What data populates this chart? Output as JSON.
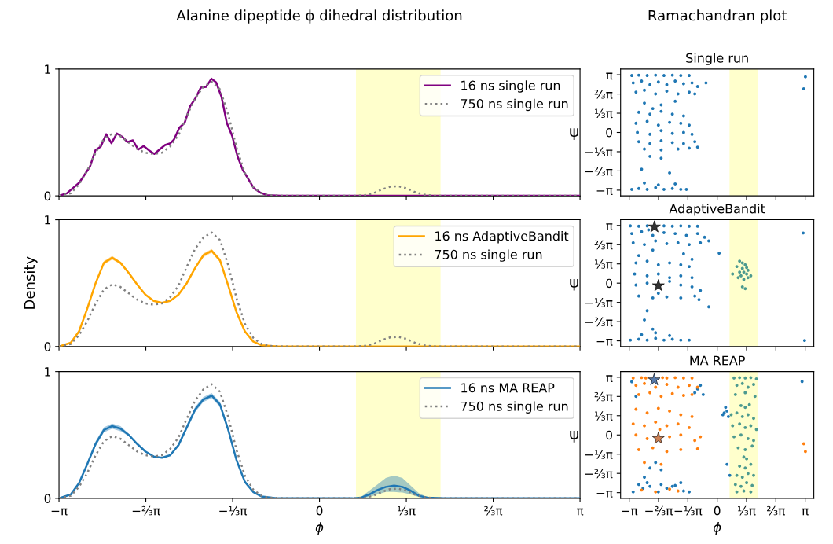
{
  "chart_data": [
    {
      "type": "line",
      "title": "Alanine dipeptide ϕ dihedral distribution",
      "xlim": [
        -3.1416,
        3.1416
      ],
      "ylim": [
        0,
        1
      ],
      "yticks": [
        0,
        1
      ],
      "tick_labels": "y",
      "legend": "top right",
      "xticks": [
        {
          "value": -3.1416,
          "label": null
        },
        {
          "value": -2.0944,
          "label": null
        },
        {
          "value": -1.0472,
          "label": null
        },
        {
          "value": 0,
          "label": null
        },
        {
          "value": 1.0472,
          "label": null
        },
        {
          "value": 2.0944,
          "label": null
        },
        {
          "value": 3.1416,
          "label": null
        }
      ],
      "bands": [
        {
          "axis": "x",
          "from": 0.44,
          "to": 1.46,
          "color": "#ffffcc"
        }
      ],
      "series": [
        {
          "name": "16 ns single run",
          "color": "#800080",
          "line_style": "solid",
          "x": [
            -3.1416,
            -3.047,
            -2.896,
            -2.767,
            -2.702,
            -2.638,
            -2.573,
            -2.509,
            -2.444,
            -2.379,
            -2.315,
            -2.25,
            -2.186,
            -2.121,
            -2.056,
            -1.992,
            -1.927,
            -1.863,
            -1.798,
            -1.755,
            -1.69,
            -1.626,
            -1.561,
            -1.497,
            -1.432,
            -1.368,
            -1.303,
            -1.247,
            -1.182,
            -1.118,
            -1.053,
            -0.988,
            -0.924,
            -0.859,
            -0.794,
            -0.721,
            -0.635,
            -0.463,
            3.1416
          ],
          "values": [
            0,
            0.02,
            0.105,
            0.232,
            0.36,
            0.388,
            0.486,
            0.415,
            0.492,
            0.466,
            0.424,
            0.438,
            0.365,
            0.393,
            0.359,
            0.331,
            0.367,
            0.401,
            0.415,
            0.444,
            0.537,
            0.576,
            0.706,
            0.768,
            0.853,
            0.859,
            0.924,
            0.895,
            0.782,
            0.576,
            0.472,
            0.311,
            0.203,
            0.133,
            0.062,
            0.028,
            0.006,
            0,
            0
          ]
        },
        {
          "name": "750 ns single run",
          "color": "#808080",
          "line_style": "dotted",
          "x": [
            -3.1416,
            -3.0,
            -2.9,
            -2.8,
            -2.7,
            -2.6,
            -2.5,
            -2.4,
            -2.3,
            -2.2,
            -2.1,
            -2.0,
            -1.9,
            -1.8,
            -1.7,
            -1.6,
            -1.5,
            -1.4,
            -1.3,
            -1.2,
            -1.1,
            -1.0,
            -0.9,
            -0.8,
            -0.7,
            -0.6,
            -0.4,
            0.4,
            0.55,
            0.65,
            0.75,
            0.85,
            0.95,
            1.05,
            1.15,
            1.25,
            1.4,
            2.0,
            3.1416
          ],
          "values": [
            0,
            0.02,
            0.09,
            0.2,
            0.34,
            0.45,
            0.49,
            0.47,
            0.42,
            0.37,
            0.34,
            0.33,
            0.34,
            0.39,
            0.48,
            0.63,
            0.77,
            0.86,
            0.9,
            0.84,
            0.64,
            0.38,
            0.18,
            0.07,
            0.02,
            0.005,
            0,
            0,
            0.005,
            0.02,
            0.05,
            0.072,
            0.076,
            0.06,
            0.03,
            0.01,
            0,
            0,
            0
          ]
        }
      ]
    },
    {
      "type": "scatter",
      "title": "Ramachandran plot",
      "subtitle": "Single run",
      "ylabel": "ψ",
      "xlim": [
        -3.45,
        3.45
      ],
      "ylim": [
        -3.45,
        3.45
      ],
      "tick_labels": "y",
      "xticks": [
        {
          "value": -3.1416,
          "label": null
        },
        {
          "value": -2.0944,
          "label": null
        },
        {
          "value": -1.0472,
          "label": null
        },
        {
          "value": 0,
          "label": null
        },
        {
          "value": 1.0472,
          "label": null
        },
        {
          "value": 2.0944,
          "label": null
        },
        {
          "value": 3.1416,
          "label": null
        }
      ],
      "yticks": [
        {
          "value": -3.1416,
          "label": "−π"
        },
        {
          "value": -2.0944,
          "label": "−⅔π"
        },
        {
          "value": -1.0472,
          "label": "−⅓π"
        },
        {
          "value": 0,
          "label": "0"
        },
        {
          "value": 1.0472,
          "label": "⅓π"
        },
        {
          "value": 2.0944,
          "label": "⅔π"
        },
        {
          "value": 3.1416,
          "label": "π"
        }
      ],
      "bands": [
        {
          "axis": "x",
          "from": 0.44,
          "to": 1.46,
          "color": "#ffffcc"
        }
      ],
      "series": [
        {
          "color": "#1f77b4",
          "marker": "circle",
          "x": [
            -3.05,
            -2.8,
            -2.5,
            -2.2,
            -1.9,
            -1.6,
            -1.3,
            -1.0,
            -3.0,
            -2.7,
            -2.4,
            -2.1,
            -1.8,
            -1.5,
            -1.2,
            -0.9,
            -0.7,
            -2.9,
            -2.6,
            -2.2,
            -1.8,
            -1.4,
            -1.0,
            -0.8,
            -0.4,
            -2.6,
            -2.0,
            -1.5,
            -2.3,
            -2.8,
            -2.4,
            -2.0,
            -1.6,
            -1.2,
            -2.9,
            -2.5,
            -2.1,
            -1.7,
            -1.3,
            -1.0,
            -2.85,
            -2.4,
            -2.0,
            -1.6,
            -1.2,
            -0.9,
            -2.8,
            -2.4,
            -2.0,
            -1.6,
            -1.2,
            -0.8,
            -0.7,
            -2.6,
            -2.0,
            -1.4,
            -1.0,
            -2.0,
            -2.4,
            -2.7,
            -1.7,
            -3.05,
            -2.8,
            -2.5,
            -2.2,
            -1.9,
            -1.6,
            -1.3,
            -1.1,
            -2.6,
            -2.1,
            -1.5,
            3.15,
            3.09
          ],
          "values": [
            3.1,
            3.12,
            3.1,
            3.12,
            3.1,
            3.12,
            3.1,
            3.1,
            2.7,
            2.8,
            2.6,
            2.75,
            2.6,
            2.8,
            2.65,
            2.7,
            2.5,
            2.2,
            2.3,
            2.1,
            2.25,
            2.1,
            2.2,
            2.1,
            2.7,
            1.6,
            1.5,
            1.7,
            1.3,
            1.1,
            1.0,
            1.15,
            1.0,
            0.9,
            0.5,
            0.6,
            0.4,
            0.55,
            0.5,
            0.4,
            0.0,
            -0.1,
            0.1,
            -0.05,
            0.0,
            -0.1,
            -0.5,
            -0.6,
            -0.45,
            -0.55,
            -0.6,
            -0.5,
            -0.8,
            -0.9,
            -0.95,
            -0.9,
            -0.85,
            -1.4,
            -1.3,
            -2.0,
            -2.2,
            -3.1,
            -3.05,
            -3.1,
            -3.0,
            -3.1,
            -3.05,
            -3.1,
            -3.1,
            -2.75,
            -2.85,
            -2.8,
            3.03,
            2.38
          ]
        }
      ]
    },
    {
      "type": "line",
      "ylabel": "Density",
      "xlim": [
        -3.1416,
        3.1416
      ],
      "ylim": [
        0,
        1
      ],
      "yticks": [
        0,
        1
      ],
      "tick_labels": "y",
      "legend": "top right",
      "xticks": [
        {
          "value": -3.1416,
          "label": null
        },
        {
          "value": -2.0944,
          "label": null
        },
        {
          "value": -1.0472,
          "label": null
        },
        {
          "value": 0,
          "label": null
        },
        {
          "value": 1.0472,
          "label": null
        },
        {
          "value": 2.0944,
          "label": null
        },
        {
          "value": 3.1416,
          "label": null
        }
      ],
      "bands": [
        {
          "axis": "x",
          "from": 0.44,
          "to": 1.46,
          "color": "#ffffcc"
        }
      ],
      "series": [
        {
          "name": "16 ns AdaptiveBandit",
          "color": "#ffa500",
          "line_style": "solid",
          "x": [
            -3.1416,
            -3.0,
            -2.9,
            -2.8,
            -2.7,
            -2.6,
            -2.5,
            -2.4,
            -2.3,
            -2.2,
            -2.1,
            -2.0,
            -1.9,
            -1.8,
            -1.7,
            -1.6,
            -1.5,
            -1.4,
            -1.3,
            -1.2,
            -1.1,
            -1.0,
            -0.9,
            -0.8,
            -0.7,
            -0.5,
            3.1416
          ],
          "values": [
            0,
            0.03,
            0.12,
            0.3,
            0.5,
            0.66,
            0.7,
            0.66,
            0.58,
            0.49,
            0.41,
            0.36,
            0.345,
            0.36,
            0.41,
            0.5,
            0.62,
            0.72,
            0.755,
            0.68,
            0.48,
            0.27,
            0.12,
            0.04,
            0.01,
            0,
            0
          ],
          "lower": [
            0,
            0.03,
            0.11,
            0.29,
            0.49,
            0.645,
            0.685,
            0.65,
            0.57,
            0.485,
            0.405,
            0.355,
            0.34,
            0.355,
            0.405,
            0.49,
            0.61,
            0.705,
            0.74,
            0.665,
            0.47,
            0.265,
            0.115,
            0.04,
            0.01,
            0,
            0
          ],
          "upper": [
            0,
            0.03,
            0.13,
            0.31,
            0.51,
            0.675,
            0.715,
            0.67,
            0.59,
            0.495,
            0.415,
            0.365,
            0.35,
            0.365,
            0.415,
            0.51,
            0.63,
            0.735,
            0.77,
            0.695,
            0.49,
            0.275,
            0.125,
            0.04,
            0.01,
            0,
            0
          ]
        },
        {
          "name": "750 ns single run",
          "color": "#808080",
          "line_style": "dotted",
          "x": [
            -3.1416,
            -3.0,
            -2.9,
            -2.8,
            -2.7,
            -2.6,
            -2.5,
            -2.4,
            -2.3,
            -2.2,
            -2.1,
            -2.0,
            -1.9,
            -1.8,
            -1.7,
            -1.6,
            -1.5,
            -1.4,
            -1.3,
            -1.2,
            -1.1,
            -1.0,
            -0.9,
            -0.8,
            -0.7,
            -0.6,
            -0.4,
            0.4,
            0.55,
            0.65,
            0.75,
            0.85,
            0.95,
            1.05,
            1.15,
            1.25,
            1.4,
            2.0,
            3.1416
          ],
          "values": [
            0,
            0.02,
            0.09,
            0.2,
            0.34,
            0.45,
            0.49,
            0.47,
            0.42,
            0.37,
            0.34,
            0.33,
            0.34,
            0.39,
            0.48,
            0.63,
            0.77,
            0.86,
            0.9,
            0.84,
            0.64,
            0.38,
            0.18,
            0.07,
            0.02,
            0.005,
            0,
            0,
            0.005,
            0.02,
            0.05,
            0.072,
            0.076,
            0.06,
            0.03,
            0.01,
            0,
            0,
            0
          ]
        }
      ]
    },
    {
      "type": "scatter",
      "subtitle": "AdaptiveBandit",
      "ylabel": "ψ",
      "xlim": [
        -3.45,
        3.45
      ],
      "ylim": [
        -3.45,
        3.45
      ],
      "tick_labels": "y",
      "xticks": [
        {
          "value": -3.1416,
          "label": null
        },
        {
          "value": -2.0944,
          "label": null
        },
        {
          "value": -1.0472,
          "label": null
        },
        {
          "value": 0,
          "label": null
        },
        {
          "value": 1.0472,
          "label": null
        },
        {
          "value": 2.0944,
          "label": null
        },
        {
          "value": 3.1416,
          "label": null
        }
      ],
      "yticks": [
        {
          "value": -3.1416,
          "label": "−π"
        },
        {
          "value": -2.0944,
          "label": "−⅔π"
        },
        {
          "value": -1.0472,
          "label": "−⅓π"
        },
        {
          "value": 0,
          "label": "0"
        },
        {
          "value": 1.0472,
          "label": "⅓π"
        },
        {
          "value": 2.0944,
          "label": "⅔π"
        },
        {
          "value": 3.1416,
          "label": "π"
        }
      ],
      "bands": [
        {
          "axis": "x",
          "from": 0.44,
          "to": 1.46,
          "color": "#ffffcc"
        }
      ],
      "series": [
        {
          "color": "#1f77b4",
          "marker": "circle",
          "x": [
            -3.1,
            -2.8,
            -2.5,
            -2.45,
            -1.9,
            -1.6,
            -1.3,
            -1.0,
            -0.7,
            -3.05,
            -2.7,
            -2.3,
            -1.9,
            -1.5,
            -1.1,
            -0.7,
            -0.45,
            -3.0,
            -2.6,
            -2.2,
            -1.8,
            -1.4,
            -1.0,
            -0.6,
            -0.3,
            -2.8,
            -2.3,
            -1.2,
            -0.9,
            -2.9,
            -2.5,
            -2.1,
            -1.7,
            -1.3,
            -1.0,
            -2.95,
            -2.5,
            -2.1,
            -1.7,
            -1.3,
            -0.9,
            -2.9,
            -2.5,
            -2.1,
            -1.7,
            -1.3,
            -0.9,
            -0.6,
            -2.8,
            -2.3,
            -1.8,
            -1.3,
            -0.8,
            -0.65,
            -2.5,
            -2.6,
            -2.3,
            -3.1,
            -2.8,
            -2.5,
            -2.2,
            -1.9,
            -1.6,
            -1.3,
            -1.0,
            -2.7,
            -2.2,
            -1.7,
            0.07,
            -0.3,
            3.07,
            3.12
          ],
          "values": [
            3.12,
            3.1,
            3.12,
            2.9,
            3.12,
            3.1,
            3.12,
            3.1,
            3.1,
            2.7,
            2.8,
            2.6,
            2.75,
            2.7,
            2.6,
            2.7,
            2.5,
            2.2,
            2.1,
            2.3,
            2.15,
            2.2,
            2.1,
            2.2,
            2.3,
            1.5,
            1.8,
            1.6,
            1.3,
            1.1,
            1.2,
            1.0,
            1.1,
            1.0,
            0.9,
            0.5,
            0.4,
            0.5,
            0.3,
            0.4,
            0.3,
            -0.1,
            0.0,
            -0.55,
            0.1,
            -0.1,
            -0.2,
            -0.4,
            -0.7,
            -0.8,
            -0.75,
            -0.8,
            -0.7,
            -0.9,
            -1.5,
            -2.0,
            -2.5,
            -3.1,
            -3.05,
            -3.1,
            -3.0,
            -3.1,
            -3.05,
            -3.1,
            -3.1,
            -2.8,
            -2.7,
            -2.85,
            1.63,
            -1.29,
            2.73,
            -3.12
          ]
        },
        {
          "color": "#4c9a8f",
          "marker": "circle",
          "x": [
            0.55,
            0.7,
            0.8,
            0.9,
            0.95,
            1.0,
            0.85,
            1.05,
            1.1,
            0.95,
            0.8,
            1.2,
            0.9,
            1.0,
            1.1,
            0.75,
            0.9,
            1.05
          ],
          "values": [
            0.5,
            0.9,
            1.2,
            0.8,
            0.6,
            1.0,
            0.4,
            0.5,
            0.3,
            0.2,
            0.6,
            0.4,
            -0.2,
            -0.3,
            0.7,
            0.3,
            1.1,
            0.85
          ]
        },
        {
          "color": "#000000",
          "marker": "star",
          "x": [
            -2.24,
            -2.1
          ],
          "values": [
            3.06,
            -0.14
          ]
        }
      ]
    },
    {
      "type": "line",
      "xlabel": "ϕ",
      "xlim": [
        -3.1416,
        3.1416
      ],
      "ylim": [
        0,
        1
      ],
      "yticks": [
        0,
        1
      ],
      "legend": "top right",
      "xticks": [
        {
          "value": -3.1416,
          "label": "−π"
        },
        {
          "value": -2.0944,
          "label": "−⅔π"
        },
        {
          "value": -1.0472,
          "label": "−⅓π"
        },
        {
          "value": 0,
          "label": "0"
        },
        {
          "value": 1.0472,
          "label": "⅓π"
        },
        {
          "value": 2.0944,
          "label": "⅔π"
        },
        {
          "value": 3.1416,
          "label": "π"
        }
      ],
      "bands": [
        {
          "axis": "x",
          "from": 0.44,
          "to": 1.46,
          "color": "#ffffcc"
        }
      ],
      "series": [
        {
          "name": "16 ns MA REAP",
          "color": "#1f77b4",
          "line_style": "solid",
          "x": [
            -3.1416,
            -3.0,
            -2.9,
            -2.8,
            -2.7,
            -2.6,
            -2.5,
            -2.4,
            -2.3,
            -2.2,
            -2.1,
            -2.0,
            -1.9,
            -1.8,
            -1.7,
            -1.6,
            -1.5,
            -1.4,
            -1.3,
            -1.2,
            -1.1,
            -1.0,
            -0.9,
            -0.8,
            -0.7,
            -0.5,
            0.4,
            0.5,
            0.6,
            0.7,
            0.8,
            0.9,
            1.0,
            1.1,
            1.2,
            1.3,
            1.5,
            3.1416
          ],
          "values": [
            0,
            0.03,
            0.12,
            0.27,
            0.43,
            0.54,
            0.57,
            0.55,
            0.5,
            0.43,
            0.37,
            0.33,
            0.32,
            0.34,
            0.42,
            0.56,
            0.7,
            0.78,
            0.81,
            0.74,
            0.54,
            0.3,
            0.13,
            0.05,
            0.015,
            0,
            0,
            0.005,
            0.03,
            0.065,
            0.09,
            0.1,
            0.09,
            0.06,
            0.02,
            0.005,
            0,
            0
          ],
          "lower": [
            0,
            0.03,
            0.11,
            0.26,
            0.41,
            0.52,
            0.55,
            0.53,
            0.49,
            0.42,
            0.365,
            0.325,
            0.315,
            0.335,
            0.41,
            0.54,
            0.68,
            0.76,
            0.79,
            0.72,
            0.52,
            0.29,
            0.12,
            0.045,
            0.01,
            0,
            0,
            0,
            0.01,
            0.03,
            0.05,
            0.05,
            0.045,
            0.03,
            0.01,
            0,
            0,
            0
          ],
          "upper": [
            0,
            0.03,
            0.13,
            0.28,
            0.45,
            0.56,
            0.59,
            0.57,
            0.51,
            0.44,
            0.375,
            0.335,
            0.325,
            0.345,
            0.43,
            0.58,
            0.72,
            0.8,
            0.83,
            0.76,
            0.56,
            0.31,
            0.14,
            0.055,
            0.02,
            0,
            0,
            0.01,
            0.06,
            0.11,
            0.16,
            0.18,
            0.16,
            0.1,
            0.04,
            0.01,
            0,
            0
          ]
        },
        {
          "name": "750 ns single run",
          "color": "#808080",
          "line_style": "dotted",
          "x": [
            -3.1416,
            -3.0,
            -2.9,
            -2.8,
            -2.7,
            -2.6,
            -2.5,
            -2.4,
            -2.3,
            -2.2,
            -2.1,
            -2.0,
            -1.9,
            -1.8,
            -1.7,
            -1.6,
            -1.5,
            -1.4,
            -1.3,
            -1.2,
            -1.1,
            -1.0,
            -0.9,
            -0.8,
            -0.7,
            -0.6,
            -0.4,
            0.4,
            0.55,
            0.65,
            0.75,
            0.85,
            0.95,
            1.05,
            1.15,
            1.25,
            1.4,
            2.0,
            3.1416
          ],
          "values": [
            0,
            0.02,
            0.09,
            0.2,
            0.34,
            0.45,
            0.49,
            0.47,
            0.42,
            0.37,
            0.34,
            0.33,
            0.34,
            0.39,
            0.48,
            0.63,
            0.77,
            0.86,
            0.9,
            0.84,
            0.64,
            0.38,
            0.18,
            0.07,
            0.02,
            0.005,
            0,
            0,
            0.005,
            0.02,
            0.05,
            0.072,
            0.076,
            0.06,
            0.03,
            0.01,
            0,
            0,
            0
          ]
        }
      ]
    },
    {
      "type": "scatter",
      "subtitle": "MA REAP",
      "xlabel": "ϕ",
      "ylabel": "ψ",
      "xlim": [
        -3.45,
        3.45
      ],
      "ylim": [
        -3.45,
        3.45
      ],
      "xticks": [
        {
          "value": -3.1416,
          "label": "−π"
        },
        {
          "value": -2.0944,
          "label": "−⅔π"
        },
        {
          "value": -1.0472,
          "label": "−⅓π"
        },
        {
          "value": 0,
          "label": "0"
        },
        {
          "value": 1.0472,
          "label": "⅓π"
        },
        {
          "value": 2.0944,
          "label": "⅔π"
        },
        {
          "value": 3.1416,
          "label": "π"
        }
      ],
      "yticks": [
        {
          "value": -3.1416,
          "label": "−π"
        },
        {
          "value": -2.0944,
          "label": "−⅔π"
        },
        {
          "value": -1.0472,
          "label": "−⅓π"
        },
        {
          "value": 0,
          "label": "0"
        },
        {
          "value": 1.0472,
          "label": "⅓π"
        },
        {
          "value": 2.0944,
          "label": "⅔π"
        },
        {
          "value": 3.1416,
          "label": "π"
        }
      ],
      "bands": [
        {
          "axis": "x",
          "from": 0.44,
          "to": 1.46,
          "color": "#ffffcc"
        }
      ],
      "series": [
        {
          "color": "#1f77b4",
          "marker": "circle",
          "x": [
            -3.05,
            -2.9,
            -0.8,
            -0.6,
            -0.5,
            -0.7,
            -3.0,
            -2.65,
            -2.4,
            -2.1,
            -1.8,
            -1.5,
            -1.2,
            -1.0,
            -2.8,
            -2.5,
            -2.0,
            -1.6,
            -2.4,
            -2.0,
            -2.2,
            0.3,
            0.25,
            0.4,
            0.35,
            0.2,
            0.35,
            0.45,
            3.03,
            -1.3,
            -2.6
          ],
          "values": [
            2.9,
            2.1,
            2.3,
            2.7,
            2.2,
            2.5,
            -3.1,
            -2.9,
            -2.8,
            -3.1,
            -2.9,
            -2.75,
            -3.05,
            -3.1,
            -2.7,
            -2.6,
            -2.7,
            -2.8,
            -1.8,
            -1.9,
            -1.5,
            1.5,
            1.2,
            1.0,
            1.3,
            1.1,
            -1.6,
            -2.2,
            2.91,
            -2.6,
            -2.3
          ]
        },
        {
          "color": "#ff7f0e",
          "marker": "circle",
          "x": [
            -3.0,
            -2.7,
            -2.55,
            -1.95,
            -1.8,
            -1.5,
            -1.2,
            -0.9,
            -2.9,
            -2.6,
            -2.2,
            -1.8,
            -1.4,
            -1.0,
            -0.7,
            -2.8,
            -2.4,
            -2.0,
            -1.6,
            -1.2,
            -0.9,
            -2.9,
            -2.5,
            -2.1,
            -1.7,
            -1.3,
            -0.9,
            -3.0,
            -2.6,
            -2.2,
            -1.8,
            -1.4,
            -1.0,
            -0.6,
            -2.9,
            -2.5,
            -2.05,
            -1.7,
            -1.3,
            -0.8,
            -2.8,
            -2.3,
            -1.8,
            -1.3,
            -0.7,
            -2.6,
            -2.0,
            -2.7,
            -2.2,
            -1.7,
            -1.4,
            3.09,
            3.15
          ],
          "values": [
            3.1,
            3.12,
            3.1,
            3.12,
            3.1,
            3.12,
            3.1,
            3.1,
            2.7,
            2.8,
            2.6,
            2.75,
            2.6,
            2.7,
            2.6,
            2.2,
            2.3,
            2.1,
            2.25,
            2.15,
            2.2,
            1.4,
            1.2,
            1.45,
            1.3,
            1.1,
            1.0,
            0.6,
            0.5,
            0.7,
            0.5,
            0.6,
            0.4,
            -0.1,
            0.0,
            -0.2,
            0.3,
            -0.1,
            0.0,
            -0.3,
            -0.8,
            -0.7,
            -0.9,
            -0.8,
            -0.75,
            -1.5,
            -1.6,
            -3.0,
            -3.1,
            -2.95,
            -3.05,
            -0.48,
            -0.9
          ]
        },
        {
          "color": "#4c9a8f",
          "marker": "circle",
          "x": [
            0.6,
            0.8,
            1.0,
            1.2,
            1.4,
            0.7,
            0.9,
            1.1,
            1.3,
            0.65,
            1.0,
            1.35,
            0.85,
            1.0,
            1.15,
            0.5,
            0.7,
            0.9,
            1.1,
            1.3,
            0.55,
            0.8,
            1.0,
            1.2,
            1.4,
            0.6,
            0.85,
            1.1,
            1.3,
            0.75,
            1.0,
            1.25,
            0.95,
            1.05,
            0.8,
            1.0,
            1.2,
            0.7,
            0.9,
            1.1,
            1.3,
            0.65,
            0.85,
            1.05,
            1.25,
            0.7,
            0.95,
            1.2
          ],
          "values": [
            3.1,
            3.12,
            3.1,
            3.12,
            3.05,
            2.7,
            2.8,
            2.6,
            2.75,
            2.2,
            2.3,
            2.1,
            1.6,
            1.5,
            1.65,
            1.1,
            1.2,
            1.0,
            1.1,
            0.9,
            0.5,
            0.6,
            0.4,
            0.5,
            0.3,
            -0.1,
            0.0,
            -0.2,
            -0.3,
            -0.7,
            -0.8,
            -0.6,
            -1.2,
            -1.3,
            -1.7,
            -1.8,
            -1.6,
            -2.2,
            -2.3,
            -2.1,
            -2.2,
            -2.7,
            -2.8,
            -2.6,
            -2.75,
            -3.1,
            -3.05,
            -3.1
          ]
        },
        {
          "color": "#2f5c9a",
          "marker": "star",
          "x": [
            -2.25
          ],
          "values": [
            3.0
          ]
        },
        {
          "color": "#c0622a",
          "marker": "star",
          "x": [
            -2.1
          ],
          "values": [
            -0.19
          ]
        }
      ]
    }
  ]
}
